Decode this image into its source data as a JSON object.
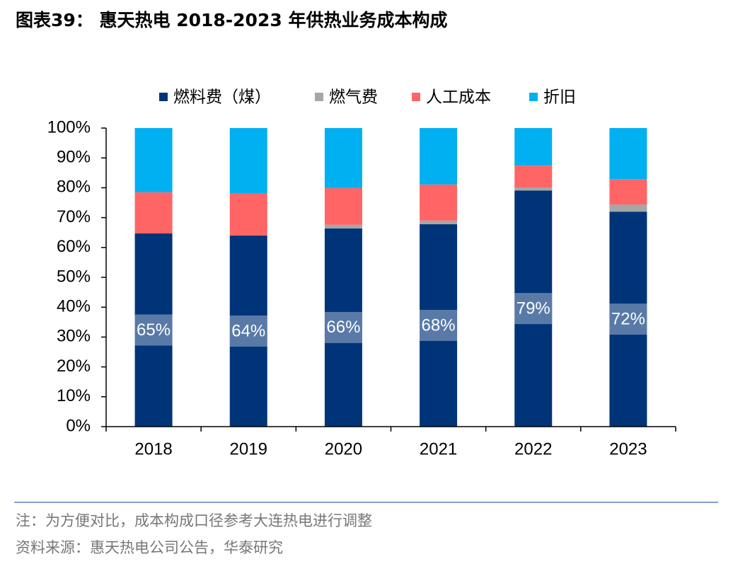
{
  "chart_data": {
    "type": "stacked_bar",
    "title": "图表39： 惠天热电 2018-2023 年供热业务成本构成",
    "note": "注：为方便对比，成本构成口径参考大连热电进行调整",
    "source": "资料来源：惠天热电公司公告，华泰研究",
    "categories": [
      "2018",
      "2019",
      "2020",
      "2021",
      "2022",
      "2023"
    ],
    "series": [
      {
        "name": "燃料费（煤）",
        "color": "#003478",
        "values": [
          64.7,
          64.0,
          66.4,
          67.8,
          79.1,
          72.0
        ],
        "value_labels": [
          "65%",
          "64%",
          "66%",
          "68%",
          "79%",
          "72%"
        ]
      },
      {
        "name": "燃气费",
        "color": "#a6a6a6",
        "values": [
          0,
          0,
          1.2,
          1.2,
          1.0,
          2.4
        ]
      },
      {
        "name": "人工成本",
        "color": "#ff6565",
        "values": [
          13.8,
          14.2,
          12.3,
          12.1,
          7.3,
          8.5
        ]
      },
      {
        "name": "折旧",
        "color": "#00b0f0",
        "values": [
          21.5,
          21.8,
          20.1,
          18.9,
          12.6,
          17.1
        ]
      }
    ],
    "ylim": [
      0,
      100
    ],
    "yticks": [
      {
        "value": 0,
        "label": "0%"
      },
      {
        "value": 10,
        "label": "10%"
      },
      {
        "value": 20,
        "label": "20%"
      },
      {
        "value": 30,
        "label": "30%"
      },
      {
        "value": 40,
        "label": "40%"
      },
      {
        "value": 50,
        "label": "50%"
      },
      {
        "value": 60,
        "label": "60%"
      },
      {
        "value": 70,
        "label": "70%"
      },
      {
        "value": 80,
        "label": "80%"
      },
      {
        "value": 90,
        "label": "90%"
      },
      {
        "value": 100,
        "label": "100%"
      }
    ],
    "legend": "top"
  }
}
